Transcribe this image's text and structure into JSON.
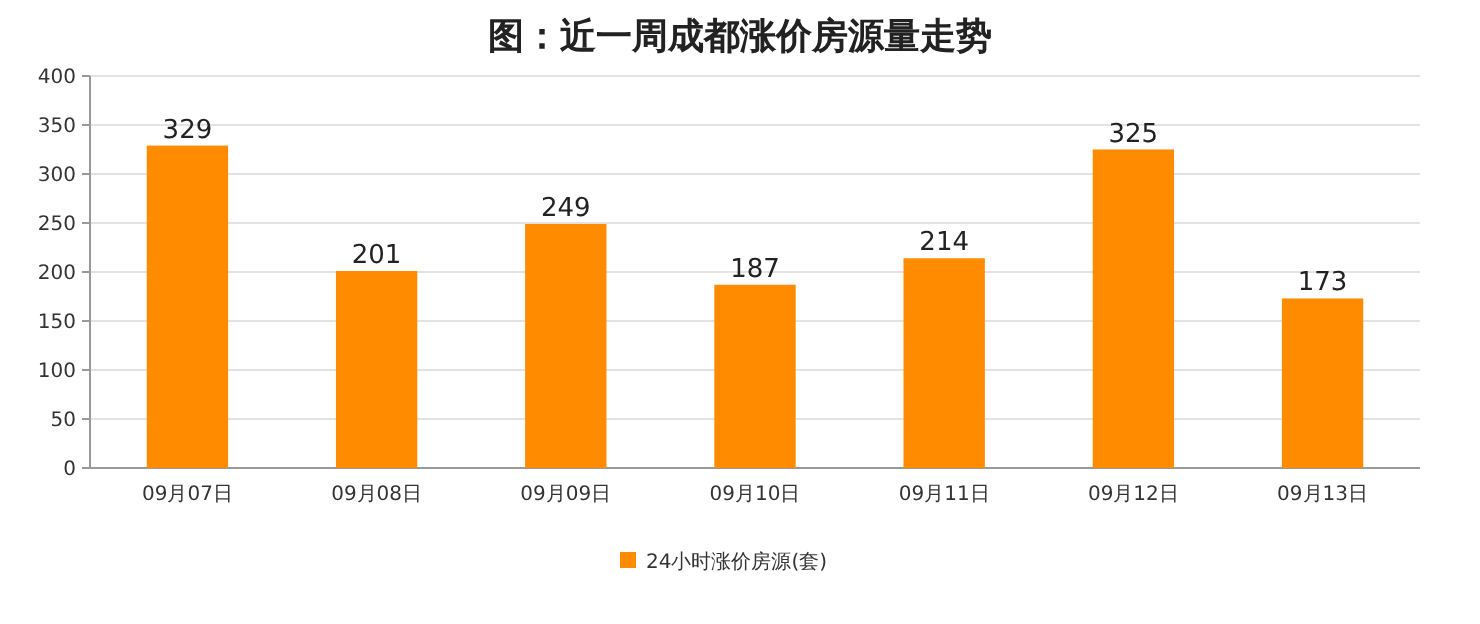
{
  "chart_data": {
    "type": "bar",
    "title": "图：近一周成都涨价房源量走势",
    "categories": [
      "09月07日",
      "09月08日",
      "09月09日",
      "09月10日",
      "09月11日",
      "09月12日",
      "09月13日"
    ],
    "series": [
      {
        "name": "24小时涨价房源(套)",
        "color": "#ff8c00",
        "values": [
          329,
          201,
          249,
          187,
          214,
          325,
          173
        ]
      }
    ],
    "ylim": [
      0,
      400
    ],
    "yticks": [
      0,
      50,
      100,
      150,
      200,
      250,
      300,
      350,
      400
    ],
    "grid": "y",
    "data_labels": true,
    "legend": "bottom"
  }
}
